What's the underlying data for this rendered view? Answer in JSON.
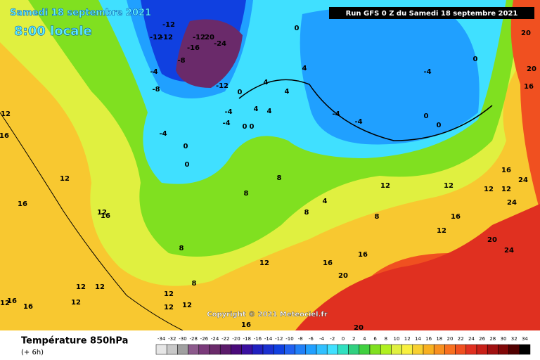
{
  "header": {
    "date": "Samedi 18 septembre 2021",
    "time": "8:00 locale",
    "run": "Run GFS 0 Z du Samedi 18 septembre 2021"
  },
  "copyright": "Copyright © 2021 Meteociel.fr",
  "legend": {
    "title": "Température 850hPa",
    "subtitle": "(+ 6h)",
    "ticks": [
      -34,
      -32,
      -30,
      -28,
      -26,
      -24,
      -22,
      -20,
      -18,
      -16,
      -14,
      -12,
      -10,
      -8,
      -6,
      -4,
      -2,
      0,
      2,
      4,
      6,
      8,
      10,
      12,
      14,
      16,
      18,
      20,
      22,
      24,
      26,
      28,
      30,
      32,
      34
    ],
    "colors": [
      "#e6e6e6",
      "#c8c8c8",
      "#a0a0a0",
      "#8c5a8c",
      "#7a3a7a",
      "#6a2a6a",
      "#5a1a6a",
      "#4a0a7a",
      "#3a10a0",
      "#2020c0",
      "#1a30d0",
      "#1040e0",
      "#2060f0",
      "#2080f8",
      "#20a0ff",
      "#30c0ff",
      "#40e0ff",
      "#30e0c0",
      "#30d080",
      "#40d040",
      "#80e020",
      "#b0f020",
      "#e0f040",
      "#f8f040",
      "#f8d030",
      "#f8b020",
      "#f89020",
      "#f87020",
      "#f05020",
      "#e03020",
      "#c82018",
      "#a01010",
      "#800808",
      "#500000",
      "#000000"
    ]
  },
  "contour_labels": [
    -12,
    -12,
    -12,
    -12,
    20,
    -16,
    -24,
    -8,
    -4,
    -8,
    -12,
    0,
    4,
    4,
    4,
    0,
    -4,
    0,
    -4,
    -4,
    0,
    0,
    -4,
    -4,
    -4,
    4,
    0,
    0,
    4,
    0,
    0,
    8,
    12,
    12,
    16,
    12,
    12,
    24,
    20,
    16,
    20,
    16,
    12,
    12,
    16,
    12,
    16,
    8,
    12,
    16,
    20,
    12,
    12,
    16,
    12,
    12,
    8,
    16,
    20,
    24,
    20,
    24,
    16,
    12,
    4,
    8,
    8,
    16,
    8,
    12,
    12,
    16,
    12
  ]
}
